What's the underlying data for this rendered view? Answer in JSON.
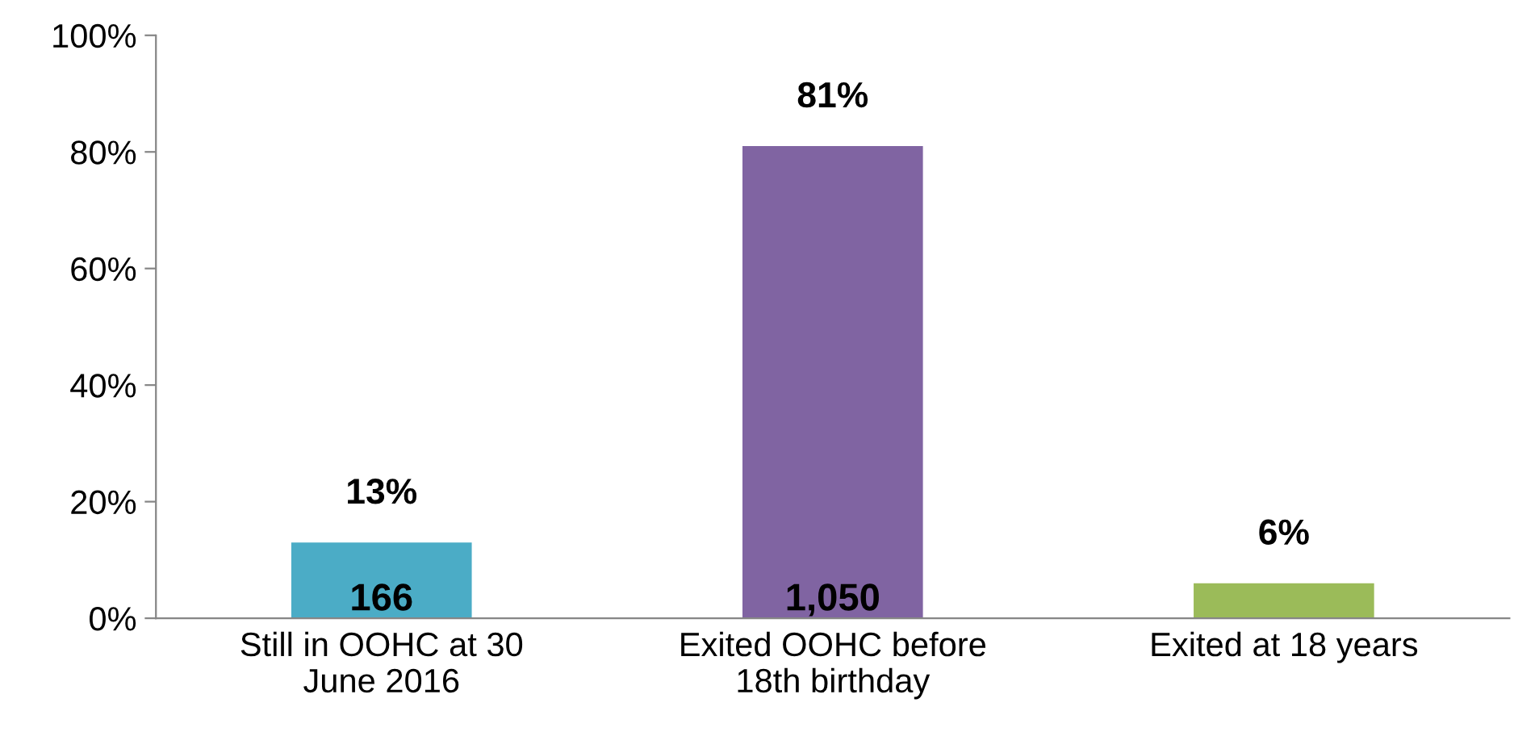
{
  "chart_data": {
    "type": "bar",
    "categories": [
      "Still in OOHC at 30\nJune 2016",
      "Exited OOHC before\n18th birthday",
      "Exited at 18 years"
    ],
    "values": [
      13,
      81,
      6
    ],
    "colors": [
      "#4bacc6",
      "#8064a2",
      "#9bbb59"
    ],
    "value_labels": [
      "13%",
      "81%",
      "6%"
    ],
    "annotations": [
      "166",
      "1,050"
    ],
    "ylim": [
      0,
      100
    ],
    "yticks": [
      {
        "value": 0,
        "label": "0%"
      },
      {
        "value": 20,
        "label": "20%"
      },
      {
        "value": 40,
        "label": "40%"
      },
      {
        "value": 60,
        "label": "60%"
      },
      {
        "value": 80,
        "label": "80%"
      },
      {
        "value": 100,
        "label": "100%"
      }
    ],
    "grid": false,
    "legend": false
  }
}
